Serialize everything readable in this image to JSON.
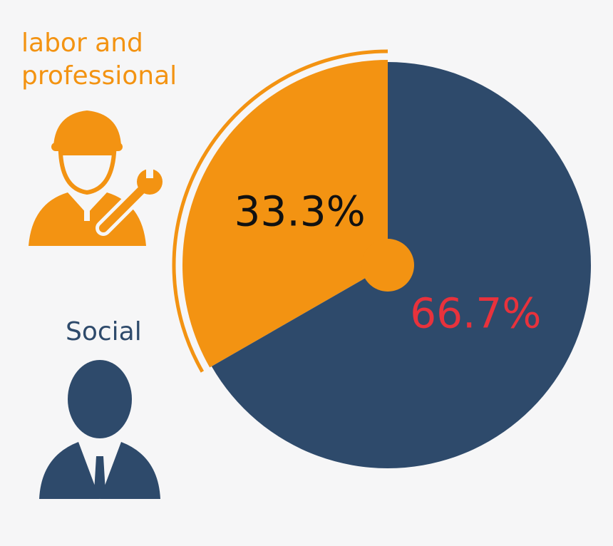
{
  "chart_data": {
    "type": "pie",
    "categories": [
      "labor and professional",
      "Social"
    ],
    "values": [
      33.3,
      66.7
    ],
    "value_labels": [
      "33.3%",
      "66.7%"
    ],
    "colors": [
      "#f39312",
      "#2e4a6b"
    ]
  }
}
